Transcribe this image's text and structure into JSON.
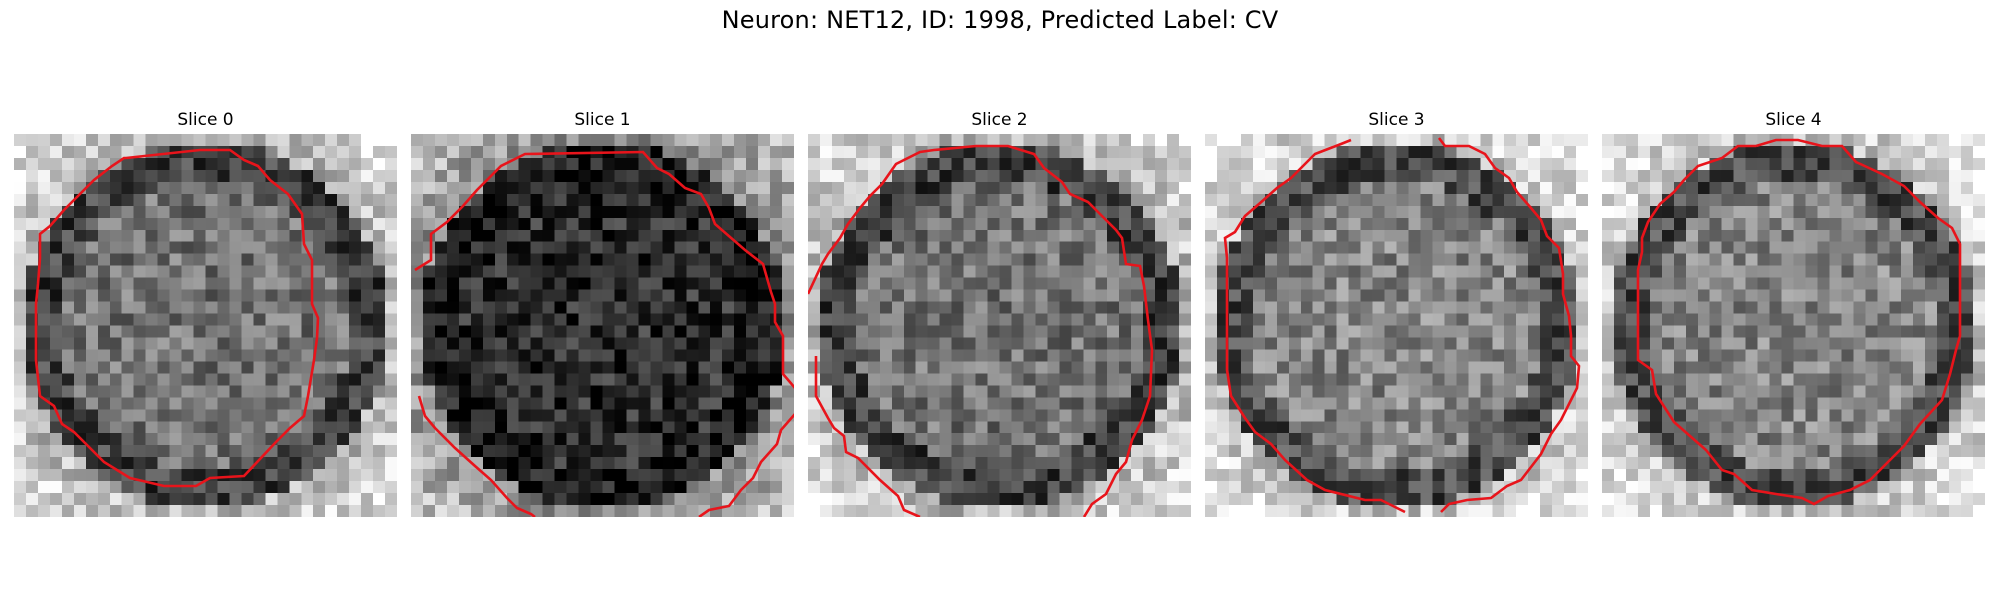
{
  "figure": {
    "title": "Neuron: NET12, ID: 1998, Predicted Label: CV",
    "contour_color": "#e8141b"
  },
  "panels": [
    {
      "title": "Slice 0",
      "base_tone": "mid",
      "seed": 11
    },
    {
      "title": "Slice 1",
      "base_tone": "dark",
      "seed": 23
    },
    {
      "title": "Slice 2",
      "base_tone": "mid",
      "seed": 37
    },
    {
      "title": "Slice 3",
      "base_tone": "mid-light",
      "seed": 41
    },
    {
      "title": "Slice 4",
      "base_tone": "mid-light",
      "seed": 53
    }
  ]
}
